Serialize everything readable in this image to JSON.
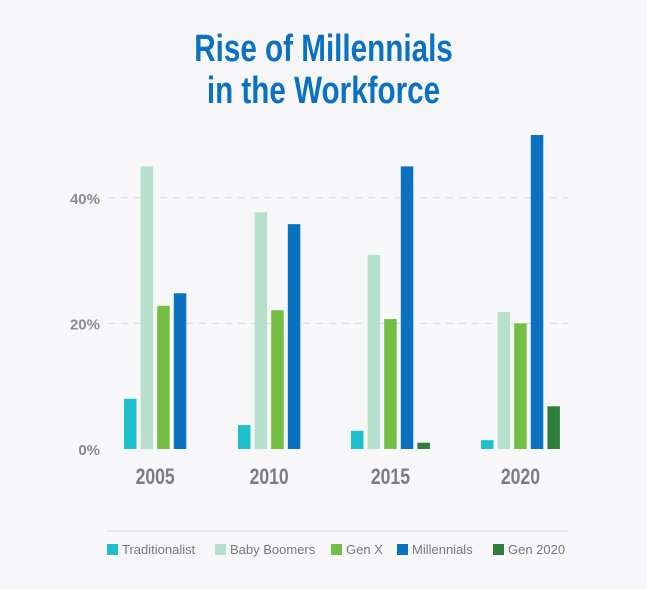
{
  "chart_data": {
    "type": "bar",
    "title_lines": [
      "Rise of Millennials",
      "in the Workforce"
    ],
    "categories": [
      "2005",
      "2010",
      "2015",
      "2020"
    ],
    "ylim": [
      0,
      50
    ],
    "yticks": [
      0,
      20,
      40
    ],
    "ytick_labels": [
      "0%",
      "20%",
      "40%"
    ],
    "grid": true,
    "legend_position": "bottom",
    "series": [
      {
        "name": "Traditionalist",
        "color": "#1dbfcb",
        "values": [
          8,
          3.8,
          2.9,
          1.4
        ]
      },
      {
        "name": "Baby Boomers",
        "color": "#b7e0cc",
        "values": [
          45,
          37.7,
          30.9,
          21.8
        ]
      },
      {
        "name": "Gen X",
        "color": "#72bf44",
        "values": [
          22.8,
          22.1,
          20.7,
          20
        ]
      },
      {
        "name": "Millennials",
        "color": "#0b72c2",
        "values": [
          24.8,
          35.8,
          45,
          50
        ]
      },
      {
        "name": "Gen 2020",
        "color": "#2e7d3a",
        "values": [
          0,
          0,
          1,
          6.8
        ]
      }
    ]
  }
}
